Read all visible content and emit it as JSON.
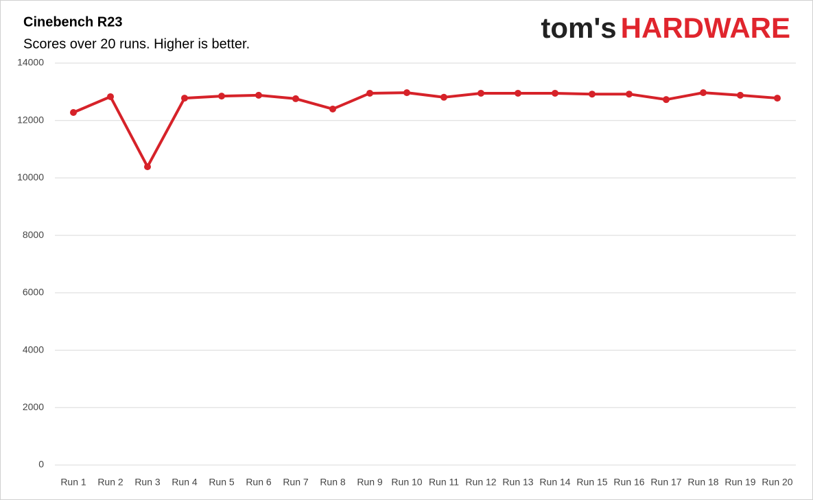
{
  "chart_data": {
    "type": "line",
    "title": "Cinebench R23",
    "subtitle": "Scores over 20 runs. Higher is better.",
    "logo": {
      "prefix": "tom's",
      "brand": "HARDWARE"
    },
    "categories": [
      "Run 1",
      "Run 2",
      "Run 3",
      "Run 4",
      "Run 5",
      "Run 6",
      "Run 7",
      "Run 8",
      "Run 9",
      "Run 10",
      "Run 11",
      "Run 12",
      "Run 13",
      "Run 14",
      "Run 15",
      "Run 16",
      "Run 17",
      "Run 18",
      "Run 19",
      "Run 20"
    ],
    "series": [
      {
        "name": "Score",
        "color": "#d62229",
        "values": [
          12280,
          12830,
          10390,
          12780,
          12850,
          12880,
          12760,
          12400,
          12950,
          12970,
          12810,
          12950,
          12950,
          12950,
          12920,
          12920,
          12730,
          12970,
          12880,
          12780
        ]
      }
    ],
    "ylim": [
      0,
      14000
    ],
    "yticks": [
      0,
      2000,
      4000,
      6000,
      8000,
      10000,
      12000,
      14000
    ],
    "grid": true,
    "legend": false
  }
}
